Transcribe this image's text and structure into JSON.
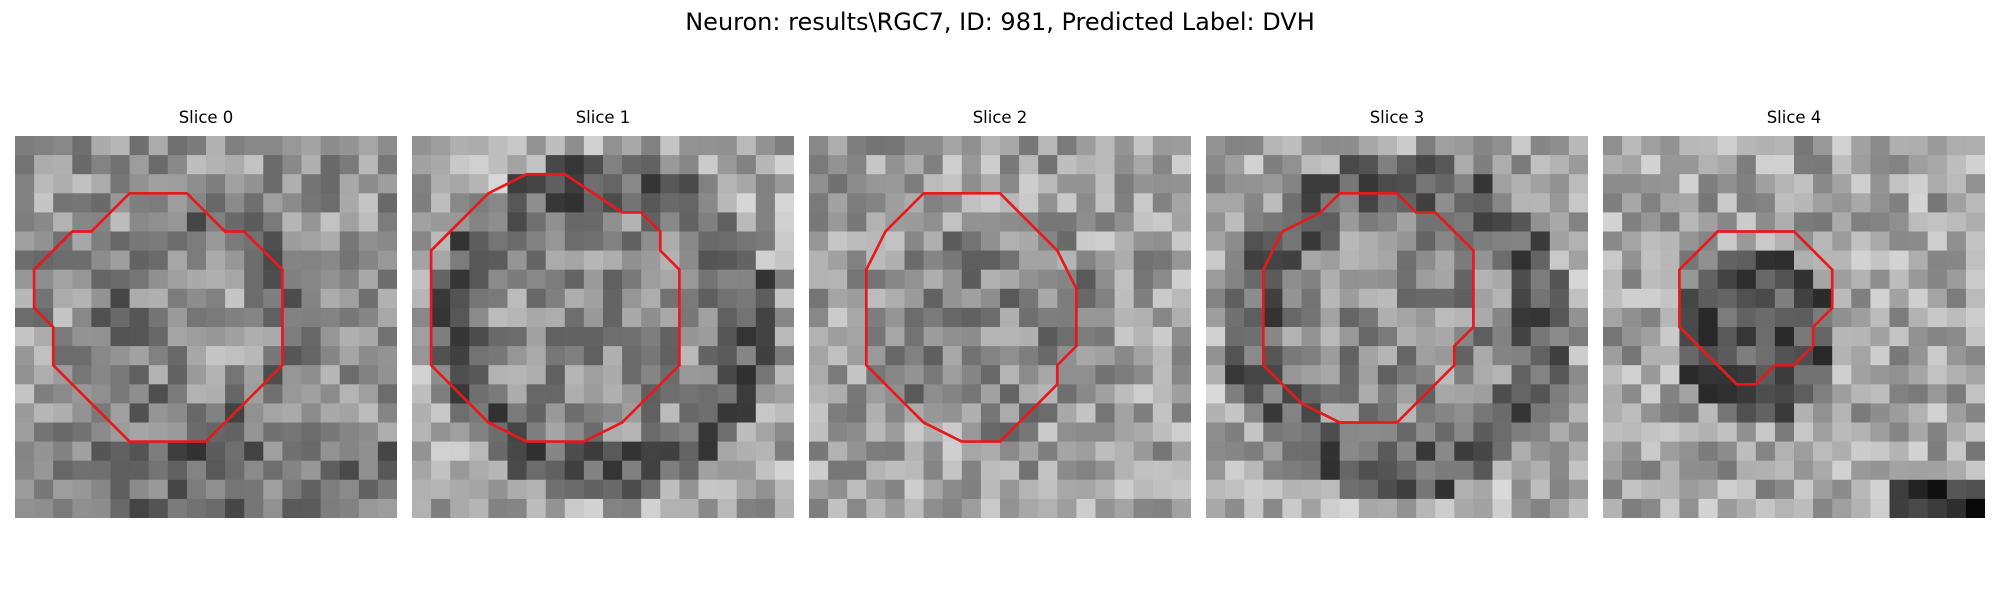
{
  "figure": {
    "title": "Neuron: results\\RGC7, ID: 981, Predicted Label: DVH"
  },
  "panels": [
    {
      "title": "Slice 0",
      "seed": 11,
      "ring": "dark-mottled",
      "contour": [
        [
          7,
          3
        ],
        [
          9,
          3
        ],
        [
          11,
          5
        ],
        [
          12,
          5
        ],
        [
          14,
          7
        ],
        [
          14,
          12
        ],
        [
          13,
          13
        ],
        [
          10,
          16
        ],
        [
          6,
          16
        ],
        [
          3,
          13
        ],
        [
          2,
          12
        ],
        [
          2,
          10
        ],
        [
          1,
          9
        ],
        [
          1,
          7
        ],
        [
          3,
          5
        ],
        [
          4,
          5
        ],
        [
          6,
          3
        ]
      ]
    },
    {
      "title": "Slice 1",
      "seed": 23,
      "ring": "dark-ring",
      "contour": [
        [
          6,
          2
        ],
        [
          8,
          2
        ],
        [
          11,
          4
        ],
        [
          12,
          4
        ],
        [
          13,
          5
        ],
        [
          13,
          6
        ],
        [
          14,
          7
        ],
        [
          14,
          12
        ],
        [
          13,
          13
        ],
        [
          12,
          14
        ],
        [
          11,
          15
        ],
        [
          9,
          16
        ],
        [
          6,
          16
        ],
        [
          4,
          15
        ],
        [
          3,
          14
        ],
        [
          2,
          13
        ],
        [
          1,
          12
        ],
        [
          1,
          9
        ],
        [
          1,
          6
        ],
        [
          2,
          5
        ],
        [
          3,
          4
        ],
        [
          4,
          3
        ]
      ]
    },
    {
      "title": "Slice 2",
      "seed": 37,
      "ring": "faint",
      "contour": [
        [
          6,
          3
        ],
        [
          10,
          3
        ],
        [
          11,
          4
        ],
        [
          12,
          5
        ],
        [
          13,
          6
        ],
        [
          14,
          8
        ],
        [
          14,
          11
        ],
        [
          13,
          12
        ],
        [
          13,
          13
        ],
        [
          12,
          14
        ],
        [
          11,
          15
        ],
        [
          10,
          16
        ],
        [
          8,
          16
        ],
        [
          6,
          15
        ],
        [
          5,
          14
        ],
        [
          4,
          13
        ],
        [
          3,
          12
        ],
        [
          3,
          10
        ],
        [
          3,
          7
        ],
        [
          4,
          5
        ],
        [
          5,
          4
        ]
      ]
    },
    {
      "title": "Slice 3",
      "seed": 53,
      "ring": "dark-ring",
      "contour": [
        [
          7,
          3
        ],
        [
          10,
          3
        ],
        [
          11,
          4
        ],
        [
          12,
          4
        ],
        [
          13,
          5
        ],
        [
          14,
          6
        ],
        [
          14,
          10
        ],
        [
          13,
          11
        ],
        [
          13,
          12
        ],
        [
          11,
          14
        ],
        [
          10,
          15
        ],
        [
          7,
          15
        ],
        [
          5,
          14
        ],
        [
          4,
          13
        ],
        [
          3,
          12
        ],
        [
          3,
          10
        ],
        [
          3,
          7
        ],
        [
          4,
          5
        ],
        [
          6,
          4
        ]
      ]
    },
    {
      "title": "Slice 4",
      "seed": 71,
      "ring": "offset-blob",
      "contour": [
        [
          8,
          5
        ],
        [
          10,
          5
        ],
        [
          11,
          6
        ],
        [
          12,
          7
        ],
        [
          12,
          9
        ],
        [
          11,
          10
        ],
        [
          11,
          11
        ],
        [
          10,
          12
        ],
        [
          9,
          12
        ],
        [
          8,
          13
        ],
        [
          7,
          13
        ],
        [
          6,
          12
        ],
        [
          5,
          11
        ],
        [
          4,
          10
        ],
        [
          4,
          8
        ],
        [
          4,
          7
        ],
        [
          5,
          6
        ],
        [
          6,
          5
        ]
      ]
    }
  ],
  "colors": {
    "contour": "#e8191c"
  }
}
